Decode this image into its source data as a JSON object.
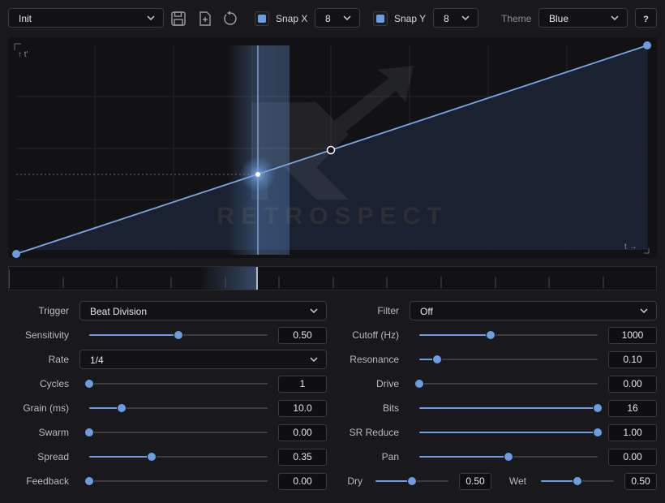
{
  "colors": {
    "accent": "#6b9de0",
    "background": "#19191b",
    "panel": "#121214"
  },
  "toolbar": {
    "preset": "Init",
    "snap_x": {
      "label": "Snap X",
      "checked": true,
      "value": "8"
    },
    "snap_y": {
      "label": "Snap Y",
      "checked": true,
      "value": "8"
    },
    "theme_label": "Theme",
    "theme_value": "Blue",
    "help_label": "?",
    "icons": [
      "save-icon",
      "new-preset-icon",
      "reset-icon"
    ]
  },
  "graph": {
    "watermark": "RETROSPECT",
    "y_axis_label": "↑ t'",
    "x_axis_label": "t →",
    "curve_points": [
      [
        0,
        0
      ],
      [
        0.5,
        0.5
      ],
      [
        1,
        1
      ]
    ],
    "playhead": 0.376
  },
  "left_params": {
    "trigger": {
      "label": "Trigger",
      "value": "Beat Division"
    },
    "sensitivity": {
      "label": "Sensitivity",
      "value": "0.50",
      "fraction": 0.5
    },
    "rate": {
      "label": "Rate",
      "value": "1/4"
    },
    "cycles": {
      "label": "Cycles",
      "value": "1",
      "fraction": 0.0
    },
    "grain": {
      "label": "Grain (ms)",
      "value": "10.0",
      "fraction": 0.18
    },
    "swarm": {
      "label": "Swarm",
      "value": "0.00",
      "fraction": 0.0
    },
    "spread": {
      "label": "Spread",
      "value": "0.35",
      "fraction": 0.35
    },
    "feedback": {
      "label": "Feedback",
      "value": "0.00",
      "fraction": 0.0
    }
  },
  "right_params": {
    "filter": {
      "label": "Filter",
      "value": "Off"
    },
    "cutoff": {
      "label": "Cutoff (Hz)",
      "value": "1000",
      "fraction": 0.4
    },
    "resonance": {
      "label": "Resonance",
      "value": "0.10",
      "fraction": 0.1
    },
    "drive": {
      "label": "Drive",
      "value": "0.00",
      "fraction": 0.0
    },
    "bits": {
      "label": "Bits",
      "value": "16",
      "fraction": 1.0
    },
    "sr_reduce": {
      "label": "SR Reduce",
      "value": "1.00",
      "fraction": 1.0
    },
    "pan": {
      "label": "Pan",
      "value": "0.00",
      "fraction": 0.5
    },
    "dry": {
      "label": "Dry",
      "value": "0.50",
      "fraction": 0.5
    },
    "wet": {
      "label": "Wet",
      "value": "0.50",
      "fraction": 0.5
    }
  }
}
